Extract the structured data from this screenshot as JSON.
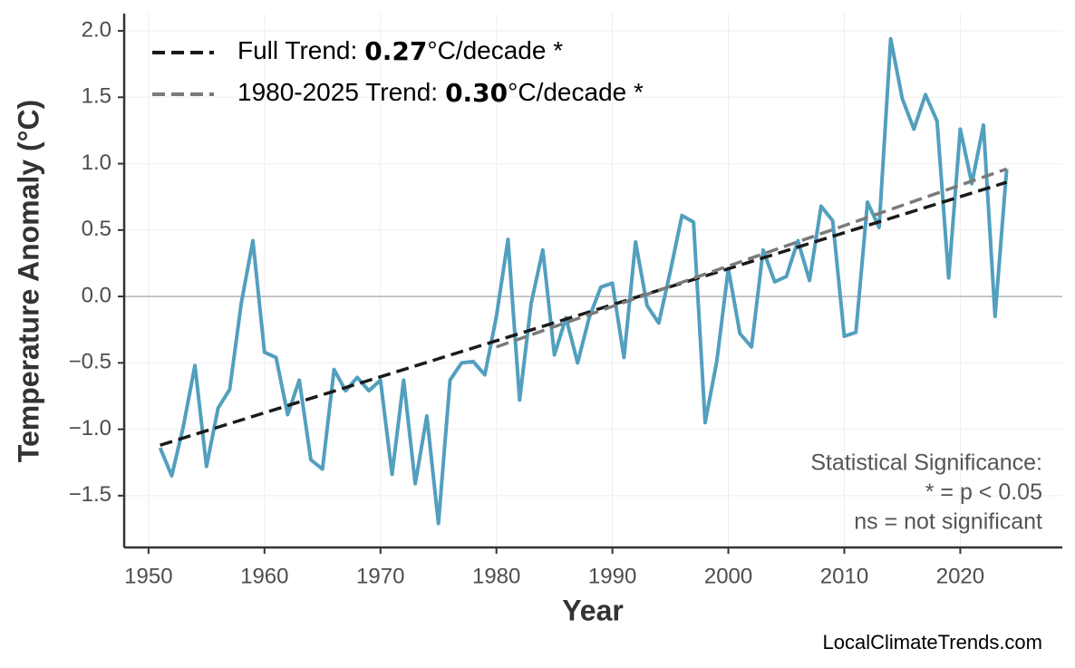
{
  "chart_data": {
    "type": "line",
    "x_label": "Year",
    "y_label": "Temperature Anomaly (°C)",
    "xlim": [
      1947.9,
      2028.8
    ],
    "ylim": [
      -1.89,
      2.13
    ],
    "xticks": [
      1950,
      1960,
      1970,
      1980,
      1990,
      2000,
      2010,
      2020
    ],
    "yticks": [
      {
        "value": -1.5,
        "label": "−1.5"
      },
      {
        "value": -1.0,
        "label": "−1.0"
      },
      {
        "value": -0.5,
        "label": "−0.5"
      },
      {
        "value": 0.0,
        "label": "0.0"
      },
      0.5,
      {
        "value": 1.0,
        "label": "1.0"
      },
      1.5,
      {
        "value": 2.0,
        "label": "2.0"
      }
    ],
    "grid": true,
    "hline": 0,
    "legend": "upper left",
    "series": [
      {
        "name": "Temperature Anomaly",
        "color": "#529fbe",
        "style": "solid",
        "x": [
          1951,
          1952,
          1953,
          1954,
          1955,
          1956,
          1957,
          1958,
          1959,
          1960,
          1961,
          1962,
          1963,
          1964,
          1965,
          1966,
          1967,
          1968,
          1969,
          1970,
          1971,
          1972,
          1973,
          1974,
          1975,
          1976,
          1977,
          1978,
          1979,
          1980,
          1981,
          1982,
          1983,
          1984,
          1985,
          1986,
          1987,
          1988,
          1989,
          1990,
          1991,
          1992,
          1993,
          1994,
          1995,
          1996,
          1997,
          1998,
          1999,
          2000,
          2001,
          2002,
          2003,
          2004,
          2005,
          2006,
          2007,
          2008,
          2009,
          2010,
          2011,
          2012,
          2013,
          2014,
          2015,
          2016,
          2017,
          2018,
          2019,
          2020,
          2021,
          2022,
          2023,
          2024
        ],
        "values": [
          -1.14,
          -1.35,
          -0.98,
          -0.52,
          -1.28,
          -0.84,
          -0.7,
          -0.05,
          0.42,
          -0.42,
          -0.46,
          -0.89,
          -0.63,
          -1.23,
          -1.3,
          -0.55,
          -0.71,
          -0.61,
          -0.71,
          -0.63,
          -1.34,
          -0.63,
          -1.41,
          -0.9,
          -1.71,
          -0.63,
          -0.5,
          -0.49,
          -0.59,
          -0.15,
          0.43,
          -0.78,
          -0.05,
          0.35,
          -0.44,
          -0.16,
          -0.5,
          -0.16,
          0.07,
          0.1,
          -0.46,
          0.41,
          -0.07,
          -0.2,
          0.19,
          0.61,
          0.56,
          -0.95,
          -0.49,
          0.21,
          -0.28,
          -0.38,
          0.35,
          0.11,
          0.15,
          0.42,
          0.12,
          0.68,
          0.57,
          -0.3,
          -0.27,
          0.71,
          0.52,
          1.94,
          1.49,
          1.26,
          1.52,
          1.32,
          0.14,
          1.26,
          0.85,
          1.29,
          -0.15,
          0.96
        ]
      },
      {
        "name": "Full Trend:",
        "slope": "0.27",
        "suffix": "°C/decade *",
        "color": "#1a1a1a",
        "style": "dashed",
        "x": [
          1951,
          2024
        ],
        "values": [
          -1.12,
          0.86
        ]
      },
      {
        "name": "1980-2025 Trend:",
        "slope": "0.30",
        "suffix": "°C/decade *",
        "color": "#7a7a7a",
        "style": "dashed",
        "x": [
          1980,
          2024
        ],
        "values": [
          -0.38,
          0.96
        ]
      }
    ],
    "annotation": [
      "Statistical Significance:",
      "* = p < 0.05",
      "ns = not significant"
    ],
    "watermark": "LocalClimateTrends.com"
  }
}
